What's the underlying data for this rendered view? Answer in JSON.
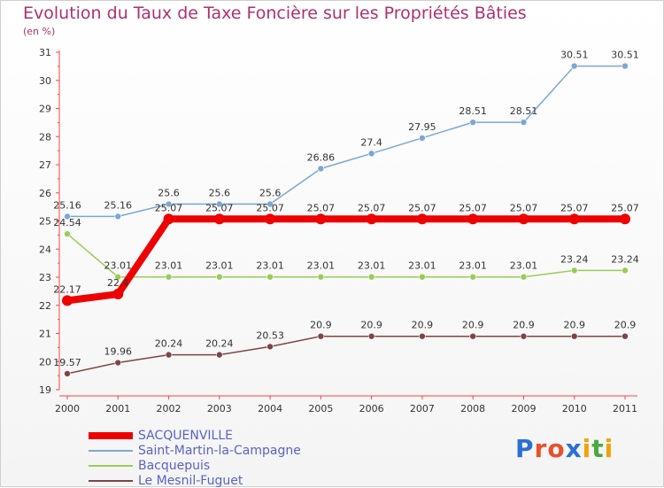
{
  "title": "Evolution du Taux de Taxe Foncière sur les Propriétés Bâties",
  "unit": "(en %)",
  "logo": {
    "letters": [
      "P",
      "r",
      "o",
      "x",
      "i",
      "t",
      "i"
    ],
    "colors": [
      "#2b6fd6",
      "#e8502c",
      "#e8502c",
      "#2b6fd6",
      "#f2a200",
      "#49a842",
      "#f2a200"
    ]
  },
  "chart_data": {
    "type": "line",
    "x": [
      2000,
      2001,
      2002,
      2003,
      2004,
      2005,
      2006,
      2007,
      2008,
      2009,
      2010,
      2011
    ],
    "ylim": [
      19,
      31
    ],
    "yticks": [
      19,
      20,
      21,
      22,
      23,
      24,
      25,
      26,
      27,
      28,
      29,
      30,
      31
    ],
    "grid": false,
    "legend_position": "bottom-left",
    "series": [
      {
        "name": "SACQUENVILLE",
        "color": "#ee0000",
        "values": [
          22.17,
          22.4,
          25.07,
          25.07,
          25.07,
          25.07,
          25.07,
          25.07,
          25.07,
          25.07,
          25.07,
          25.07
        ],
        "labels": [
          "22.17",
          "22.4",
          "25.07",
          "25.07",
          "25.07",
          "25.07",
          "25.07",
          "25.07",
          "25.07",
          "25.07",
          "25.07",
          "25.07"
        ]
      },
      {
        "name": "Saint-Martin-la-Campagne",
        "color": "#7ba7d6",
        "values": [
          25.16,
          25.16,
          25.6,
          25.6,
          25.6,
          26.86,
          27.4,
          27.95,
          28.51,
          28.51,
          30.51,
          30.51
        ],
        "labels": [
          "25.16",
          "25.16",
          "25.6",
          "25.6",
          "25.6",
          "26.86",
          "27.4",
          "27.95",
          "28.51",
          "28.51",
          "30.51",
          "30.51"
        ]
      },
      {
        "name": "Bacquepuis",
        "color": "#99cc55",
        "values": [
          24.54,
          23.01,
          23.01,
          23.01,
          23.01,
          23.01,
          23.01,
          23.01,
          23.01,
          23.01,
          23.24,
          23.24
        ],
        "labels": [
          "24.54",
          "23.01",
          "23.01",
          "23.01",
          "23.01",
          "23.01",
          "23.01",
          "23.01",
          "23.01",
          "23.01",
          "23.24",
          "23.24"
        ]
      },
      {
        "name": "Le Mesnil-Fuguet",
        "color": "#804444",
        "values": [
          19.57,
          19.96,
          20.24,
          20.24,
          20.53,
          20.9,
          20.9,
          20.9,
          20.9,
          20.9,
          20.9,
          20.9
        ],
        "labels": [
          "19.57",
          "19.96",
          "20.24",
          "20.24",
          "20.53",
          "20.9",
          "20.9",
          "20.9",
          "20.9",
          "20.9",
          "20.9",
          "20.9"
        ]
      }
    ]
  }
}
